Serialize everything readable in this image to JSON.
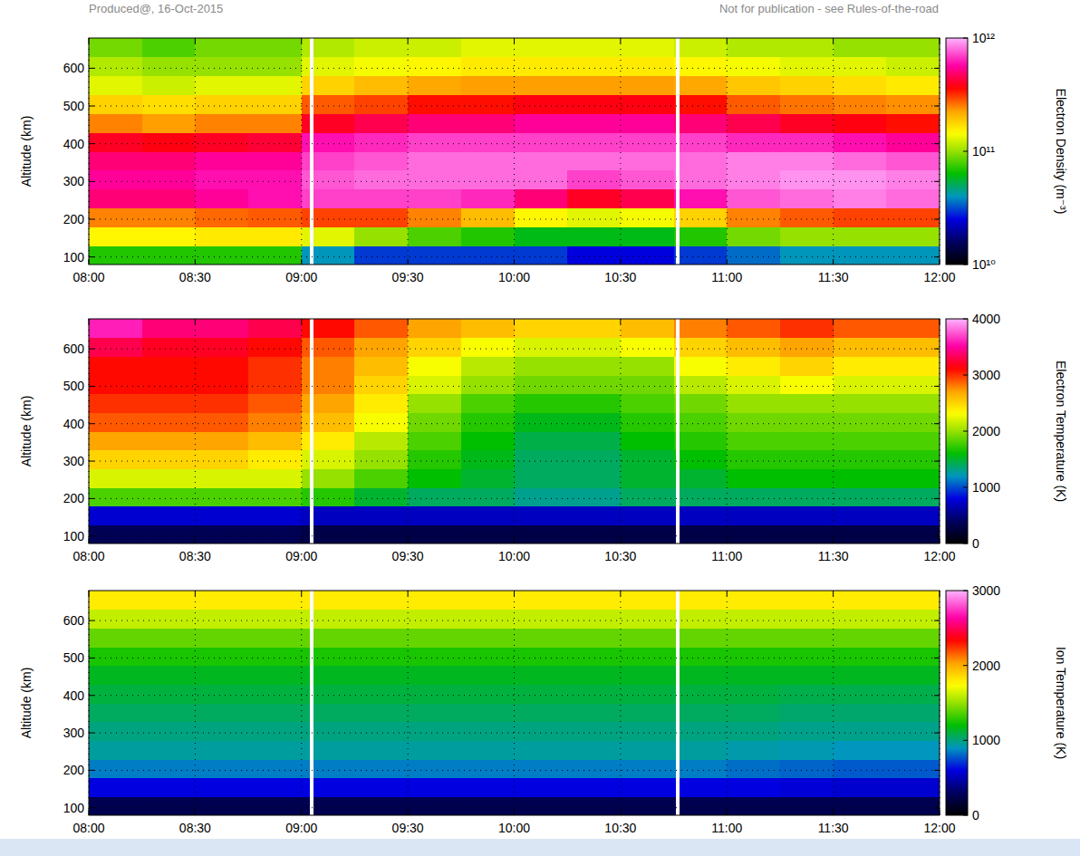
{
  "header": {
    "left": "Produced@, 16-Oct-2015",
    "right": "Not for publication - see Rules-of-the-road"
  },
  "chart_data": [
    {
      "type": "heatmap",
      "ylabel": "Altitude (km)",
      "zlabel": "Electron Density (m⁻³)",
      "log": true,
      "grid": true,
      "xlim": [
        8,
        12
      ],
      "ylim": [
        80,
        680
      ],
      "xticks": [
        {
          "value": 8,
          "label": "08:00"
        },
        {
          "value": 8.5,
          "label": "08:30"
        },
        {
          "value": 9,
          "label": "09:00"
        },
        {
          "value": 9.5,
          "label": "09:30"
        },
        {
          "value": 10,
          "label": "10:00"
        },
        {
          "value": 10.5,
          "label": "10:30"
        },
        {
          "value": 11,
          "label": "11:00"
        },
        {
          "value": 11.5,
          "label": "11:30"
        },
        {
          "value": 12,
          "label": "12:00"
        }
      ],
      "yticks": [
        100,
        200,
        300,
        400,
        500,
        600
      ],
      "zlim": [
        10000000000.0,
        1000000000000.0
      ],
      "zticks": [
        {
          "value": 10000000000.0,
          "label": "10¹⁰"
        },
        {
          "value": 100000000000.0,
          "label": "10¹¹"
        },
        {
          "value": 1000000000000.0,
          "label": "10¹²"
        }
      ],
      "x_bins": [
        8,
        8.25,
        8.5,
        8.75,
        9,
        9.25,
        9.5,
        9.75,
        10,
        10.25,
        10.5,
        10.75,
        11,
        11.25,
        11.5,
        11.75,
        12
      ],
      "y_bins": [
        80,
        130,
        180,
        230,
        280,
        330,
        380,
        430,
        480,
        530,
        580,
        630,
        680
      ],
      "values": [
        [
          70000000000.0,
          70000000000.0,
          70000000000.0,
          70000000000.0,
          40000000000.0,
          30000000000.0,
          30000000000.0,
          30000000000.0,
          30000000000.0,
          25000000000.0,
          25000000000.0,
          30000000000.0,
          35000000000.0,
          40000000000.0,
          40000000000.0,
          40000000000.0
        ],
        [
          150000000000.0,
          150000000000.0,
          160000000000.0,
          160000000000.0,
          130000000000.0,
          100000000000.0,
          80000000000.0,
          70000000000.0,
          60000000000.0,
          60000000000.0,
          60000000000.0,
          70000000000.0,
          90000000000.0,
          100000000000.0,
          100000000000.0,
          100000000000.0
        ],
        [
          250000000000.0,
          250000000000.0,
          270000000000.0,
          280000000000.0,
          300000000000.0,
          300000000000.0,
          250000000000.0,
          200000000000.0,
          150000000000.0,
          130000000000.0,
          140000000000.0,
          180000000000.0,
          250000000000.0,
          280000000000.0,
          300000000000.0,
          300000000000.0
        ],
        [
          500000000000.0,
          500000000000.0,
          550000000000.0,
          600000000000.0,
          700000000000.0,
          700000000000.0,
          700000000000.0,
          650000000000.0,
          500000000000.0,
          400000000000.0,
          450000000000.0,
          600000000000.0,
          750000000000.0,
          800000000000.0,
          850000000000.0,
          800000000000.0
        ],
        [
          550000000000.0,
          550000000000.0,
          600000000000.0,
          600000000000.0,
          750000000000.0,
          800000000000.0,
          800000000000.0,
          800000000000.0,
          800000000000.0,
          700000000000.0,
          750000000000.0,
          800000000000.0,
          850000000000.0,
          900000000000.0,
          900000000000.0,
          850000000000.0
        ],
        [
          500000000000.0,
          500000000000.0,
          550000000000.0,
          550000000000.0,
          700000000000.0,
          750000000000.0,
          800000000000.0,
          800000000000.0,
          800000000000.0,
          800000000000.0,
          800000000000.0,
          800000000000.0,
          850000000000.0,
          850000000000.0,
          800000000000.0,
          750000000000.0
        ],
        [
          400000000000.0,
          380000000000.0,
          400000000000.0,
          420000000000.0,
          600000000000.0,
          650000000000.0,
          700000000000.0,
          700000000000.0,
          700000000000.0,
          700000000000.0,
          700000000000.0,
          700000000000.0,
          650000000000.0,
          650000000000.0,
          600000000000.0,
          550000000000.0
        ],
        [
          250000000000.0,
          230000000000.0,
          250000000000.0,
          250000000000.0,
          400000000000.0,
          450000000000.0,
          500000000000.0,
          500000000000.0,
          550000000000.0,
          550000000000.0,
          550000000000.0,
          500000000000.0,
          450000000000.0,
          400000000000.0,
          380000000000.0,
          350000000000.0
        ],
        [
          180000000000.0,
          170000000000.0,
          180000000000.0,
          180000000000.0,
          280000000000.0,
          300000000000.0,
          350000000000.0,
          350000000000.0,
          380000000000.0,
          380000000000.0,
          380000000000.0,
          350000000000.0,
          280000000000.0,
          260000000000.0,
          250000000000.0,
          240000000000.0
        ],
        [
          130000000000.0,
          120000000000.0,
          130000000000.0,
          130000000000.0,
          180000000000.0,
          200000000000.0,
          220000000000.0,
          230000000000.0,
          230000000000.0,
          230000000000.0,
          230000000000.0,
          220000000000.0,
          190000000000.0,
          180000000000.0,
          170000000000.0,
          160000000000.0
        ],
        [
          110000000000.0,
          100000000000.0,
          100000000000.0,
          100000000000.0,
          130000000000.0,
          140000000000.0,
          150000000000.0,
          160000000000.0,
          160000000000.0,
          160000000000.0,
          160000000000.0,
          150000000000.0,
          140000000000.0,
          130000000000.0,
          130000000000.0,
          120000000000.0
        ],
        [
          90000000000.0,
          80000000000.0,
          90000000000.0,
          90000000000.0,
          110000000000.0,
          120000000000.0,
          120000000000.0,
          130000000000.0,
          130000000000.0,
          130000000000.0,
          130000000000.0,
          120000000000.0,
          110000000000.0,
          110000000000.0,
          100000000000.0,
          100000000000.0
        ]
      ],
      "gaps": [
        9.05,
        10.77
      ]
    },
    {
      "type": "heatmap",
      "ylabel": "Altitude (km)",
      "zlabel": "Electron Temperature (K)",
      "grid": true,
      "xlim": [
        8,
        12
      ],
      "ylim": [
        80,
        680
      ],
      "xticks": [
        {
          "value": 8,
          "label": "08:00"
        },
        {
          "value": 8.5,
          "label": "08:30"
        },
        {
          "value": 9,
          "label": "09:00"
        },
        {
          "value": 9.5,
          "label": "09:30"
        },
        {
          "value": 10,
          "label": "10:00"
        },
        {
          "value": 10.5,
          "label": "10:30"
        },
        {
          "value": 11,
          "label": "11:00"
        },
        {
          "value": 11.5,
          "label": "11:30"
        },
        {
          "value": 12,
          "label": "12:00"
        }
      ],
      "yticks": [
        100,
        200,
        300,
        400,
        500,
        600
      ],
      "zlim": [
        0,
        4000
      ],
      "zticks": [
        0,
        1000,
        2000,
        3000,
        4000
      ],
      "x_bins": [
        8,
        8.25,
        8.5,
        8.75,
        9,
        9.25,
        9.5,
        9.75,
        10,
        10.25,
        10.5,
        10.75,
        11,
        11.25,
        11.5,
        11.75,
        12
      ],
      "y_bins": [
        80,
        130,
        180,
        230,
        280,
        330,
        380,
        430,
        480,
        530,
        580,
        630,
        680
      ],
      "values": [
        [
          350,
          350,
          350,
          350,
          300,
          300,
          300,
          300,
          300,
          300,
          300,
          300,
          300,
          300,
          300,
          300
        ],
        [
          750,
          750,
          750,
          750,
          700,
          700,
          700,
          700,
          700,
          700,
          700,
          700,
          700,
          700,
          700,
          700
        ],
        [
          1800,
          1800,
          1800,
          1800,
          1700,
          1500,
          1400,
          1400,
          1300,
          1300,
          1400,
          1400,
          1400,
          1400,
          1400,
          1400
        ],
        [
          2200,
          2200,
          2200,
          2200,
          2000,
          1800,
          1600,
          1500,
          1400,
          1400,
          1500,
          1500,
          1600,
          1600,
          1600,
          1600
        ],
        [
          2500,
          2500,
          2500,
          2400,
          2200,
          2000,
          1700,
          1550,
          1400,
          1400,
          1500,
          1600,
          1700,
          1700,
          1700,
          1700
        ],
        [
          2700,
          2700,
          2700,
          2600,
          2400,
          2100,
          1800,
          1600,
          1450,
          1450,
          1600,
          1700,
          1800,
          1800,
          1800,
          1800
        ],
        [
          2900,
          2900,
          2900,
          2800,
          2600,
          2300,
          1900,
          1700,
          1550,
          1550,
          1700,
          1800,
          1900,
          1900,
          1900,
          1900
        ],
        [
          3000,
          3000,
          3000,
          2900,
          2700,
          2400,
          2000,
          1800,
          1700,
          1700,
          1800,
          1900,
          2000,
          2000,
          2000,
          2000
        ],
        [
          3100,
          3100,
          3100,
          3000,
          2800,
          2500,
          2200,
          2000,
          1900,
          1900,
          1900,
          2100,
          2200,
          2300,
          2200,
          2200
        ],
        [
          3100,
          3100,
          3100,
          3000,
          2800,
          2600,
          2300,
          2100,
          2000,
          2000,
          2000,
          2300,
          2400,
          2500,
          2400,
          2400
        ],
        [
          3300,
          3200,
          3200,
          3100,
          2900,
          2700,
          2500,
          2300,
          2200,
          2200,
          2300,
          2500,
          2600,
          2700,
          2600,
          2600
        ],
        [
          3600,
          3400,
          3400,
          3300,
          3100,
          2900,
          2700,
          2600,
          2500,
          2500,
          2600,
          2800,
          2900,
          3000,
          2900,
          2900
        ]
      ],
      "gaps": [
        9.05,
        10.77
      ]
    },
    {
      "type": "heatmap",
      "ylabel": "Altitude (km)",
      "zlabel": "Ion Temperature (K)",
      "grid": true,
      "xlim": [
        8,
        12
      ],
      "ylim": [
        80,
        680
      ],
      "xticks": [
        {
          "value": 8,
          "label": "08:00"
        },
        {
          "value": 8.5,
          "label": "08:30"
        },
        {
          "value": 9,
          "label": "09:00"
        },
        {
          "value": 9.5,
          "label": "09:30"
        },
        {
          "value": 10,
          "label": "10:00"
        },
        {
          "value": 10.5,
          "label": "10:30"
        },
        {
          "value": 11,
          "label": "11:00"
        },
        {
          "value": 11.5,
          "label": "11:30"
        },
        {
          "value": 12,
          "label": "12:00"
        }
      ],
      "yticks": [
        100,
        200,
        300,
        400,
        500,
        600
      ],
      "zlim": [
        0,
        3000
      ],
      "zticks": [
        0,
        1000,
        2000,
        3000
      ],
      "x_bins": [
        8,
        8.25,
        8.5,
        8.75,
        9,
        9.25,
        9.5,
        9.75,
        10,
        10.25,
        10.5,
        10.75,
        11,
        11.25,
        11.5,
        11.75,
        12
      ],
      "y_bins": [
        80,
        130,
        180,
        230,
        280,
        330,
        380,
        430,
        480,
        530,
        580,
        630,
        680
      ],
      "values": [
        [
          250,
          250,
          250,
          250,
          250,
          250,
          250,
          250,
          250,
          250,
          250,
          250,
          250,
          250,
          250,
          250
        ],
        [
          600,
          600,
          600,
          600,
          600,
          600,
          600,
          600,
          600,
          600,
          600,
          600,
          600,
          580,
          560,
          560
        ],
        [
          850,
          850,
          850,
          850,
          850,
          850,
          850,
          850,
          850,
          850,
          850,
          850,
          820,
          800,
          780,
          780
        ],
        [
          950,
          950,
          950,
          950,
          950,
          950,
          950,
          950,
          950,
          950,
          950,
          950,
          930,
          920,
          900,
          900
        ],
        [
          1000,
          1000,
          1000,
          1000,
          1000,
          1000,
          1000,
          1000,
          1000,
          1000,
          1000,
          1000,
          1000,
          980,
          980,
          980
        ],
        [
          1050,
          1050,
          1050,
          1050,
          1050,
          1050,
          1050,
          1050,
          1050,
          1050,
          1050,
          1050,
          1050,
          1030,
          1030,
          1030
        ],
        [
          1100,
          1100,
          1100,
          1100,
          1100,
          1100,
          1100,
          1100,
          1100,
          1100,
          1100,
          1100,
          1100,
          1080,
          1080,
          1080
        ],
        [
          1150,
          1150,
          1150,
          1150,
          1150,
          1150,
          1150,
          1150,
          1150,
          1150,
          1150,
          1150,
          1150,
          1150,
          1150,
          1150
        ],
        [
          1250,
          1250,
          1250,
          1250,
          1250,
          1250,
          1250,
          1250,
          1250,
          1250,
          1250,
          1250,
          1250,
          1250,
          1250,
          1250
        ],
        [
          1400,
          1400,
          1400,
          1400,
          1400,
          1400,
          1400,
          1400,
          1400,
          1400,
          1400,
          1400,
          1400,
          1400,
          1400,
          1400
        ],
        [
          1600,
          1600,
          1600,
          1600,
          1600,
          1600,
          1600,
          1600,
          1600,
          1600,
          1600,
          1600,
          1600,
          1600,
          1600,
          1600
        ],
        [
          1800,
          1800,
          1800,
          1800,
          1800,
          1800,
          1800,
          1800,
          1800,
          1800,
          1800,
          1800,
          1800,
          1800,
          1800,
          1800
        ]
      ],
      "gaps": [
        9.05,
        10.77
      ]
    }
  ]
}
